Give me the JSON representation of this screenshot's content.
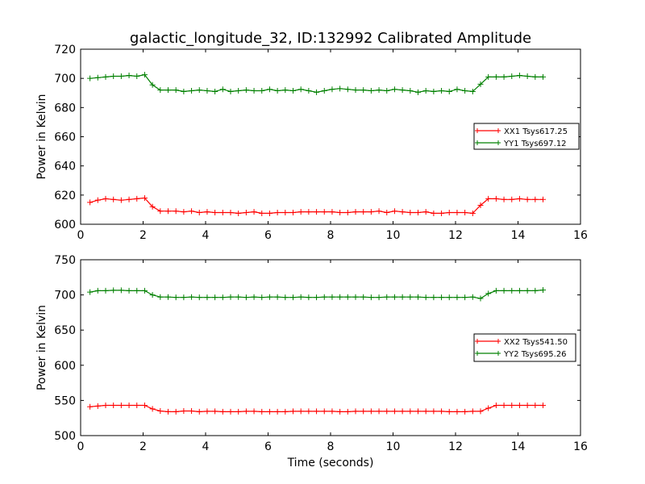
{
  "figure": {
    "title": "galactic_longitude_32, ID:132992 Calibrated Amplitude"
  },
  "chart_data": [
    {
      "type": "line",
      "title": "galactic_longitude_32, ID:132992 Calibrated Amplitude",
      "xlabel": "",
      "ylabel": "Power in Kelvin",
      "xlim": [
        0,
        16
      ],
      "ylim": [
        600,
        720
      ],
      "xticks": [
        0,
        2,
        4,
        6,
        8,
        10,
        12,
        14,
        16
      ],
      "yticks": [
        600,
        620,
        640,
        660,
        680,
        700,
        720
      ],
      "grid": false,
      "legend_position": "right",
      "x": [
        0.3,
        0.55,
        0.8,
        1.05,
        1.3,
        1.55,
        1.8,
        2.05,
        2.3,
        2.55,
        2.8,
        3.05,
        3.3,
        3.55,
        3.8,
        4.05,
        4.3,
        4.55,
        4.8,
        5.05,
        5.3,
        5.55,
        5.8,
        6.05,
        6.3,
        6.55,
        6.8,
        7.05,
        7.3,
        7.55,
        7.8,
        8.05,
        8.3,
        8.55,
        8.8,
        9.05,
        9.3,
        9.55,
        9.8,
        10.05,
        10.3,
        10.55,
        10.8,
        11.05,
        11.3,
        11.55,
        11.8,
        12.05,
        12.3,
        12.55,
        12.8,
        13.05,
        13.3,
        13.55,
        13.8,
        14.05,
        14.3,
        14.55,
        14.8
      ],
      "series": [
        {
          "name": "XX1 Tsys617.25",
          "color": "#ff0000",
          "values": [
            615,
            616.5,
            617.5,
            617,
            616.5,
            617,
            617.5,
            618,
            612,
            609,
            609,
            609,
            608.5,
            609,
            608,
            608.5,
            608,
            608,
            608,
            607.5,
            608,
            608.5,
            607.5,
            607.5,
            608,
            608,
            608,
            608.5,
            608.5,
            608.5,
            608.5,
            608.5,
            608,
            608,
            608.5,
            608.5,
            608.5,
            609,
            608,
            609,
            608.5,
            608,
            608,
            608.5,
            607.5,
            607.5,
            608,
            608,
            608,
            607.5,
            613,
            617.5,
            617.5,
            617,
            617,
            617.5,
            617,
            617,
            617
          ]
        },
        {
          "name": "YY1 Tsys697.12",
          "color": "#008000",
          "values": [
            700,
            700.5,
            701,
            701.5,
            701.5,
            702,
            701.5,
            702.5,
            695.5,
            692,
            692,
            692,
            691,
            691.5,
            692,
            691.5,
            691,
            692.5,
            691,
            691.5,
            692,
            691.5,
            691.5,
            692.5,
            691.5,
            692,
            691.5,
            692.5,
            691.5,
            690.5,
            691.5,
            692.5,
            693,
            692.5,
            692,
            692,
            691.5,
            692,
            691.5,
            692.5,
            692,
            691.5,
            690.5,
            691.5,
            691,
            691.5,
            691,
            692.5,
            691.5,
            691,
            696,
            701,
            701,
            701,
            701.5,
            702,
            701.5,
            701,
            701
          ]
        }
      ]
    },
    {
      "type": "line",
      "xlabel": "Time (seconds)",
      "ylabel": "Power in Kelvin",
      "xlim": [
        0,
        16
      ],
      "ylim": [
        500,
        750
      ],
      "xticks": [
        0,
        2,
        4,
        6,
        8,
        10,
        12,
        14,
        16
      ],
      "yticks": [
        500,
        550,
        600,
        650,
        700,
        750
      ],
      "grid": false,
      "legend_position": "right",
      "x": [
        0.3,
        0.55,
        0.8,
        1.05,
        1.3,
        1.55,
        1.8,
        2.05,
        2.3,
        2.55,
        2.8,
        3.05,
        3.3,
        3.55,
        3.8,
        4.05,
        4.3,
        4.55,
        4.8,
        5.05,
        5.3,
        5.55,
        5.8,
        6.05,
        6.3,
        6.55,
        6.8,
        7.05,
        7.3,
        7.55,
        7.8,
        8.05,
        8.3,
        8.55,
        8.8,
        9.05,
        9.3,
        9.55,
        9.8,
        10.05,
        10.3,
        10.55,
        10.8,
        11.05,
        11.3,
        11.55,
        11.8,
        12.05,
        12.3,
        12.55,
        12.8,
        13.05,
        13.3,
        13.55,
        13.8,
        14.05,
        14.3,
        14.55,
        14.8
      ],
      "series": [
        {
          "name": "XX2 Tsys541.50",
          "color": "#ff0000",
          "values": [
            541,
            542,
            543,
            543,
            543,
            543,
            543,
            543,
            538,
            535,
            534,
            534,
            535,
            535,
            534,
            534.5,
            534.5,
            534,
            534,
            534,
            534.5,
            534.5,
            534,
            534,
            534,
            534,
            534.5,
            534.5,
            534.5,
            534.5,
            534.5,
            534.5,
            534,
            534,
            534.5,
            534.5,
            534.5,
            534.5,
            534.5,
            534.5,
            534.5,
            534.5,
            534.5,
            534.5,
            534.5,
            534.5,
            534,
            534,
            534,
            534.5,
            534.5,
            539,
            543,
            543,
            543,
            543,
            543,
            543,
            543
          ]
        },
        {
          "name": "YY2 Tsys695.26",
          "color": "#008000",
          "values": [
            704,
            706,
            706,
            706.5,
            706.5,
            706,
            706,
            706,
            700,
            697,
            697,
            696.5,
            696.5,
            697,
            696.5,
            696.5,
            696.5,
            696.5,
            697,
            697,
            696.5,
            697,
            696.5,
            697,
            697,
            696.5,
            696.5,
            697,
            696.5,
            696.5,
            697,
            697,
            697,
            697,
            697,
            697,
            696.5,
            696.5,
            697,
            697,
            697,
            697,
            697,
            696.5,
            696.5,
            696.5,
            696.5,
            696.5,
            696.5,
            697,
            695,
            702,
            706,
            706,
            706,
            706,
            706,
            706,
            707
          ]
        }
      ]
    }
  ]
}
